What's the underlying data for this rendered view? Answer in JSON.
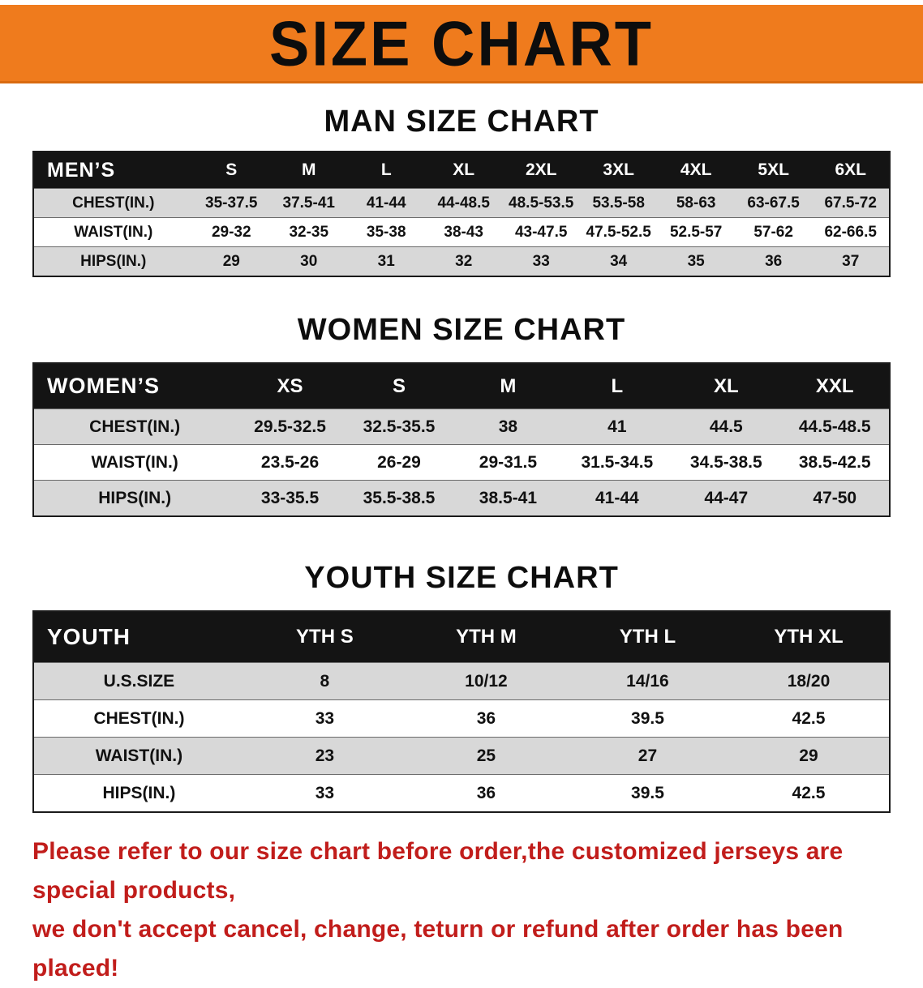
{
  "banner": {
    "title": "SIZE CHART",
    "bg_color": "#ef7b1d",
    "text_color": "#0d0d0d"
  },
  "sections": [
    {
      "title": "MAN SIZE CHART",
      "table": {
        "header": [
          "MEN’S",
          "S",
          "M",
          "L",
          "XL",
          "2XL",
          "3XL",
          "4XL",
          "5XL",
          "6XL"
        ],
        "rows": [
          {
            "label": "CHEST(IN.)",
            "values": [
              "35-37.5",
              "37.5-41",
              "41-44",
              "44-48.5",
              "48.5-53.5",
              "53.5-58",
              "58-63",
              "63-67.5",
              "67.5-72"
            ]
          },
          {
            "label": "WAIST(IN.)",
            "values": [
              "29-32",
              "32-35",
              "35-38",
              "38-43",
              "43-47.5",
              "47.5-52.5",
              "52.5-57",
              "57-62",
              "62-66.5"
            ]
          },
          {
            "label": "HIPS(IN.)",
            "values": [
              "29",
              "30",
              "31",
              "32",
              "33",
              "34",
              "35",
              "36",
              "37"
            ]
          }
        ]
      }
    },
    {
      "title": "WOMEN SIZE CHART",
      "table": {
        "header": [
          "WOMEN’S",
          "XS",
          "S",
          "M",
          "L",
          "XL",
          "XXL"
        ],
        "rows": [
          {
            "label": "CHEST(IN.)",
            "values": [
              "29.5-32.5",
              "32.5-35.5",
              "38",
              "41",
              "44.5",
              "44.5-48.5"
            ]
          },
          {
            "label": "WAIST(IN.)",
            "values": [
              "23.5-26",
              "26-29",
              "29-31.5",
              "31.5-34.5",
              "34.5-38.5",
              "38.5-42.5"
            ]
          },
          {
            "label": "HIPS(IN.)",
            "values": [
              "33-35.5",
              "35.5-38.5",
              "38.5-41",
              "41-44",
              "44-47",
              "47-50"
            ]
          }
        ]
      }
    },
    {
      "title": "YOUTH SIZE CHART",
      "table": {
        "header": [
          "YOUTH",
          "YTH S",
          "YTH M",
          "YTH L",
          "YTH XL"
        ],
        "rows": [
          {
            "label": "U.S.SIZE",
            "values": [
              "8",
              "10/12",
              "14/16",
              "18/20"
            ]
          },
          {
            "label": "CHEST(IN.)",
            "values": [
              "33",
              "36",
              "39.5",
              "42.5"
            ]
          },
          {
            "label": "WAIST(IN.)",
            "values": [
              "23",
              "25",
              "27",
              "29"
            ]
          },
          {
            "label": "HIPS(IN.)",
            "values": [
              "33",
              "36",
              "39.5",
              "42.5"
            ]
          }
        ]
      }
    }
  ],
  "footer": {
    "line1": "Please refer to our size chart before order,the customized jerseys are special products,",
    "line2": "we don't accept cancel, change, teturn or refund after order has been placed!",
    "text_color": "#c11d1b"
  },
  "colors": {
    "banner_orange": "#ef7b1d",
    "table_header_black": "#141414",
    "stripe_gray": "#d8d8d8",
    "note_red": "#c11d1b"
  }
}
